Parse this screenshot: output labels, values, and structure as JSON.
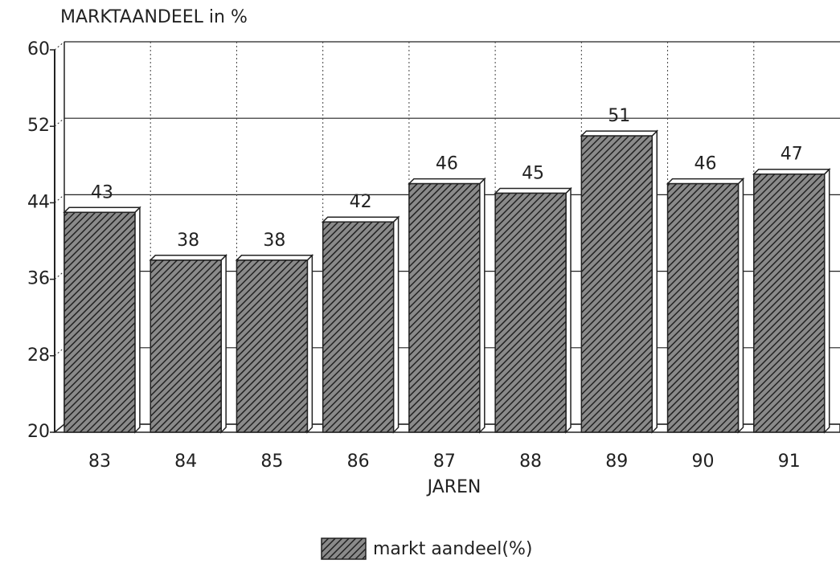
{
  "chart_data": {
    "type": "bar3d",
    "title": "MARKTAANDEEL in %",
    "x_label": "JAREN",
    "categories": [
      "83",
      "84",
      "85",
      "86",
      "87",
      "88",
      "89",
      "90",
      "91"
    ],
    "series": [
      {
        "name": "markt aandeel(%)",
        "color": "#555555",
        "values": [
          43,
          38,
          38,
          42,
          46,
          45,
          51,
          46,
          47
        ]
      }
    ],
    "ylim": [
      20,
      60
    ],
    "yticks": [
      20,
      28,
      36,
      44,
      52,
      60
    ],
    "grid": true,
    "legend": "bottom"
  }
}
